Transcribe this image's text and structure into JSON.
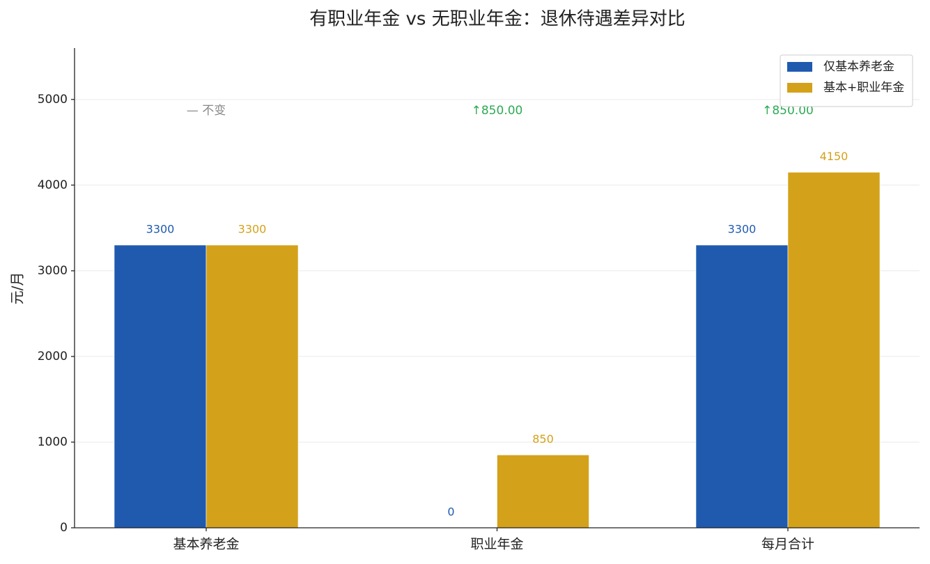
{
  "chart_data": {
    "type": "bar",
    "title": "有职业年金 vs 无职业年金：退休待遇差异对比",
    "ylabel": "元/月",
    "categories": [
      "基本养老金",
      "职业年金",
      "每月合计"
    ],
    "series": [
      {
        "name": "仅基本养老金",
        "color": "#1f5aaf",
        "values": [
          3300,
          0,
          3300
        ]
      },
      {
        "name": "基本+职业年金",
        "color": "#d4a11a",
        "values": [
          3300,
          850,
          4150
        ]
      }
    ],
    "annotations": [
      {
        "text": "— 不变",
        "color": "#888888"
      },
      {
        "text": "↑850.00",
        "color": "#2eaa55"
      },
      {
        "text": "↑850.00",
        "color": "#2eaa55"
      }
    ],
    "ylim": [
      0,
      5600
    ],
    "yticks": [
      0,
      1000,
      2000,
      3000,
      4000,
      5000
    ],
    "grid": true,
    "legend": "upper right"
  }
}
